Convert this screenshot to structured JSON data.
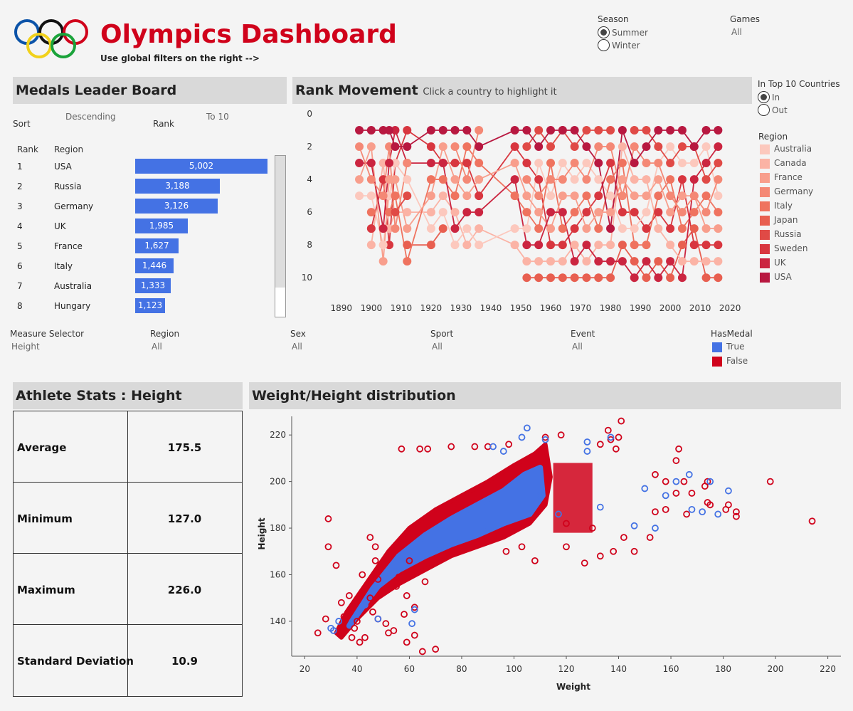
{
  "header": {
    "title": "Olympics Dashboard",
    "subtitle": "Use global filters on the right -->"
  },
  "filters": {
    "season": {
      "label": "Season",
      "options": [
        "Summer",
        "Winter"
      ],
      "selected": "Summer"
    },
    "games": {
      "label": "Games",
      "value": "All"
    },
    "top10": {
      "label": "In Top 10 Countries",
      "options": [
        "In",
        "Out"
      ],
      "selected": "In"
    },
    "measure": {
      "label": "Measure Selector",
      "value": "Height"
    },
    "region": {
      "label": "Region",
      "value": "All"
    },
    "sex": {
      "label": "Sex",
      "value": "All"
    },
    "sport": {
      "label": "Sport",
      "value": "All"
    },
    "event": {
      "label": "Event",
      "value": "All"
    },
    "hasmedal": {
      "label": "HasMedal",
      "items": [
        {
          "label": "True",
          "color": "#4472e4"
        },
        {
          "label": "False",
          "color": "#d0021b"
        }
      ]
    }
  },
  "leaderboard": {
    "title": "Medals Leader Board",
    "sort_label": "Sort",
    "sort_order": "Descending",
    "sort_by": "Rank",
    "to_label": "To 10",
    "columns": [
      "Rank",
      "Region"
    ],
    "bar_color": "#4472e4",
    "rows": [
      {
        "rank": "1",
        "region": "USA",
        "value": "5,002",
        "count": 5002
      },
      {
        "rank": "2",
        "region": "Russia",
        "value": "3,188",
        "count": 3188
      },
      {
        "rank": "3",
        "region": "Germany",
        "value": "3,126",
        "count": 3126
      },
      {
        "rank": "4",
        "region": "UK",
        "value": "1,985",
        "count": 1985
      },
      {
        "rank": "5",
        "region": "France",
        "value": "1,627",
        "count": 1627
      },
      {
        "rank": "6",
        "region": "Italy",
        "value": "1,446",
        "count": 1446
      },
      {
        "rank": "7",
        "region": "Australia",
        "value": "1,333",
        "count": 1333
      },
      {
        "rank": "8",
        "region": "Hungary",
        "value": "1,123",
        "count": 1123
      }
    ]
  },
  "rank_movement": {
    "title": "Rank Movement",
    "subtitle": "Click a country to highlight it",
    "legend_title": "Region",
    "legend": [
      {
        "label": "Australia",
        "color": "#fcc8bd"
      },
      {
        "label": "Canada",
        "color": "#fbb3a5"
      },
      {
        "label": "France",
        "color": "#f89e8c"
      },
      {
        "label": "Germany",
        "color": "#f48875"
      },
      {
        "label": "Italy",
        "color": "#ef735f"
      },
      {
        "label": "Japan",
        "color": "#e85f50"
      },
      {
        "label": "Russia",
        "color": "#e04a46"
      },
      {
        "label": "Sweden",
        "color": "#d8363f"
      },
      {
        "label": "UK",
        "color": "#cb2540"
      },
      {
        "label": "USA",
        "color": "#b81840"
      }
    ],
    "x_ticks": [
      "1890",
      "1900",
      "1910",
      "1920",
      "1930",
      "1940",
      "1950",
      "1960",
      "1970",
      "1980",
      "1990",
      "2000",
      "2010",
      "2020"
    ],
    "y_ticks": [
      "0",
      "2",
      "4",
      "6",
      "8",
      "10"
    ],
    "years": [
      1896,
      1900,
      1904,
      1906,
      1908,
      1912,
      1920,
      1924,
      1928,
      1932,
      1936,
      1948,
      1952,
      1956,
      1960,
      1964,
      1968,
      1972,
      1976,
      1980,
      1984,
      1988,
      1992,
      1996,
      2000,
      2004,
      2008,
      2012,
      2016
    ],
    "chart_data": {
      "type": "line",
      "xlabel": "",
      "ylabel": "",
      "xlim": [
        1886,
        2024
      ],
      "ylim": [
        10.6,
        0
      ],
      "series": [
        {
          "name": "USA",
          "values": [
            1,
            1,
            1,
            1,
            2,
            2,
            1,
            1,
            1,
            1,
            2,
            1,
            1,
            2,
            1,
            1,
            1,
            2,
            3,
            7,
            1,
            3,
            2,
            1,
            1,
            1,
            2,
            1,
            1
          ]
        },
        {
          "name": "Russia",
          "values": [
            null,
            null,
            null,
            null,
            6,
            5,
            null,
            null,
            null,
            null,
            null,
            null,
            2,
            1,
            2,
            1,
            2,
            1,
            1,
            1,
            null,
            1,
            1,
            2,
            3,
            2,
            2,
            4,
            3
          ]
        },
        {
          "name": "Germany",
          "values": [
            2,
            4,
            5,
            2,
            7,
            3,
            null,
            null,
            2,
            4,
            1,
            null,
            4,
            5,
            4,
            4,
            3,
            4,
            2,
            2,
            5,
            2,
            3,
            3,
            5,
            6,
            5,
            6,
            4
          ]
        },
        {
          "name": "UK",
          "values": [
            3,
            3,
            7,
            3,
            1,
            3,
            3,
            3,
            7,
            6,
            6,
            4,
            8,
            8,
            6,
            6,
            9,
            8,
            9,
            9,
            9,
            10,
            9,
            10,
            9,
            10,
            4,
            3,
            2
          ]
        },
        {
          "name": "France",
          "values": [
            4,
            2,
            9,
            4,
            4,
            7,
            5,
            2,
            4,
            5,
            4,
            3,
            5,
            6,
            7,
            5,
            5,
            7,
            6,
            6,
            4,
            5,
            5,
            4,
            6,
            5,
            5,
            7,
            7
          ]
        },
        {
          "name": "Italy",
          "values": [
            null,
            6,
            null,
            6,
            5,
            9,
            4,
            4,
            5,
            2,
            3,
            5,
            6,
            7,
            3,
            7,
            6,
            5,
            7,
            4,
            3,
            8,
            8,
            5,
            4,
            7,
            6,
            5,
            6
          ]
        },
        {
          "name": "Australia",
          "values": [
            5,
            5,
            8,
            5,
            3,
            4,
            7,
            6,
            8,
            7,
            8,
            7,
            7,
            3,
            5,
            3,
            4,
            3,
            4,
            5,
            7,
            7,
            6,
            3,
            2,
            3,
            3,
            2,
            5
          ]
        },
        {
          "name": "Sweden",
          "values": [
            null,
            7,
            4,
            8,
            3,
            1,
            2,
            3,
            3,
            3,
            5,
            2,
            3,
            4,
            8,
            8,
            7,
            6,
            5,
            3,
            6,
            6,
            7,
            6,
            7,
            4,
            8,
            8,
            8
          ]
        },
        {
          "name": "Canada",
          "values": [
            null,
            8,
            3,
            7,
            6,
            6,
            6,
            5,
            6,
            8,
            7,
            8,
            9,
            9,
            9,
            9,
            8,
            9,
            8,
            8,
            2,
            4,
            4,
            7,
            8,
            9,
            9,
            9,
            9
          ]
        },
        {
          "name": "Japan",
          "values": [
            null,
            null,
            null,
            null,
            null,
            8,
            8,
            7,
            null,
            null,
            null,
            null,
            10,
            10,
            10,
            10,
            10,
            10,
            10,
            10,
            8,
            9,
            10,
            9,
            10,
            8,
            7,
            10,
            10
          ]
        }
      ]
    }
  },
  "stats": {
    "title": "Athlete Stats : Height",
    "rows": [
      {
        "label": "Average",
        "value": "175.5"
      },
      {
        "label": "Minimum",
        "value": "127.0"
      },
      {
        "label": "Maximum",
        "value": "226.0"
      },
      {
        "label": "Standard Deviation",
        "value": "10.9"
      }
    ]
  },
  "scatter": {
    "title": "Weight/Height distribution",
    "chart_data": {
      "type": "scatter",
      "xlabel": "Weight",
      "ylabel": "Height",
      "xlim": [
        15,
        225
      ],
      "ylim": [
        125,
        228
      ],
      "x_ticks": [
        20,
        40,
        60,
        80,
        100,
        120,
        140,
        160,
        180,
        200,
        220
      ],
      "y_ticks": [
        140,
        160,
        180,
        200,
        220
      ],
      "series": [
        {
          "name": "True",
          "color": "#4472e4",
          "points": [
            [
              105,
              223
            ],
            [
              92,
              215
            ],
            [
              103,
              219
            ],
            [
              112,
              218
            ],
            [
              128,
              217
            ],
            [
              137,
              219
            ],
            [
              128,
              213
            ],
            [
              162,
              200
            ],
            [
              150,
              197
            ],
            [
              167,
              203
            ],
            [
              175,
              200
            ],
            [
              182,
              196
            ],
            [
              172,
              187
            ],
            [
              168,
              188
            ],
            [
              178,
              186
            ],
            [
              158,
              194
            ],
            [
              146,
              181
            ],
            [
              154,
              180
            ],
            [
              48,
              141
            ],
            [
              43,
              147
            ],
            [
              33,
              140
            ],
            [
              30,
              137
            ],
            [
              31,
              136
            ],
            [
              61,
              139
            ],
            [
              62,
              145
            ],
            [
              117,
              186
            ],
            [
              110,
              194
            ],
            [
              96,
              213
            ],
            [
              133,
              189
            ]
          ]
        },
        {
          "name": "False",
          "color": "#d0021b",
          "points": [
            [
              141,
              226
            ],
            [
              136,
              222
            ],
            [
              137,
              218
            ],
            [
              133,
              216
            ],
            [
              140,
              219
            ],
            [
              139,
              214
            ],
            [
              112,
              219
            ],
            [
              118,
              220
            ],
            [
              85,
              215
            ],
            [
              76,
              215
            ],
            [
              90,
              215
            ],
            [
              57,
              214
            ],
            [
              64,
              214
            ],
            [
              67,
              214
            ],
            [
              163,
              214
            ],
            [
              98,
              216
            ],
            [
              111,
              213
            ],
            [
              198,
              200
            ],
            [
              214,
              183
            ],
            [
              168,
              195
            ],
            [
              174,
              200
            ],
            [
              173,
              198
            ],
            [
              165,
              200
            ],
            [
              162,
              209
            ],
            [
              154,
              203
            ],
            [
              158,
              200
            ],
            [
              166,
              186
            ],
            [
              175,
              190
            ],
            [
              181,
              188
            ],
            [
              185,
              187
            ],
            [
              185,
              185
            ],
            [
              182,
              190
            ],
            [
              174,
              191
            ],
            [
              162,
              195
            ],
            [
              158,
              188
            ],
            [
              29,
              184
            ],
            [
              29,
              172
            ],
            [
              32,
              164
            ],
            [
              45,
              176
            ],
            [
              47,
              172
            ],
            [
              47,
              166
            ],
            [
              63,
              163
            ],
            [
              48,
              158
            ],
            [
              42,
              160
            ],
            [
              56,
              159
            ],
            [
              60,
              166
            ],
            [
              66,
              157
            ],
            [
              55,
              155
            ],
            [
              59,
              151
            ],
            [
              62,
              146
            ],
            [
              37,
              151
            ],
            [
              34,
              148
            ],
            [
              40,
              140
            ],
            [
              46,
              144
            ],
            [
              51,
              139
            ],
            [
              43,
              133
            ],
            [
              38,
              133
            ],
            [
              52,
              135
            ],
            [
              54,
              136
            ],
            [
              59,
              131
            ],
            [
              62,
              134
            ],
            [
              70,
              128
            ],
            [
              65,
              127
            ],
            [
              25,
              135
            ],
            [
              28,
              141
            ],
            [
              35,
              142
            ],
            [
              39,
              137
            ],
            [
              41,
              131
            ],
            [
              48,
              141
            ],
            [
              58,
              143
            ],
            [
              45,
              150
            ],
            [
              97,
              170
            ],
            [
              103,
              172
            ],
            [
              108,
              166
            ],
            [
              120,
              172
            ],
            [
              127,
              165
            ],
            [
              133,
              168
            ],
            [
              138,
              170
            ],
            [
              146,
              170
            ],
            [
              152,
              176
            ],
            [
              154,
              187
            ],
            [
              142,
              176
            ],
            [
              130,
              180
            ],
            [
              120,
              182
            ]
          ]
        }
      ]
    }
  }
}
